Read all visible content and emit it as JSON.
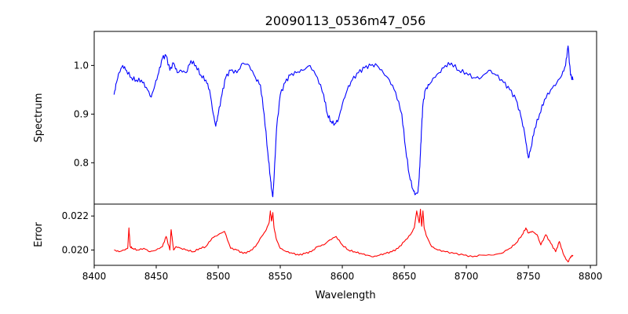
{
  "chart_data": [
    {
      "type": "line",
      "title": "20090113_0536m47_056",
      "xlabel": "",
      "ylabel": "Spectrum",
      "xlim": [
        8400,
        8805
      ],
      "ylim": [
        0.715,
        1.07
      ],
      "xticks": [],
      "yticks": [
        0.8,
        0.9,
        1.0
      ],
      "ytick_labels": [
        "0.8",
        "0.9",
        "1.0"
      ],
      "series": [
        {
          "name": "Spectrum",
          "color": "#0000ff",
          "x": [
            8416,
            8418,
            8420,
            8423,
            8426,
            8430,
            8434,
            8438,
            8442,
            8446,
            8449,
            8452,
            8455,
            8458,
            8461,
            8464,
            8467,
            8470,
            8474,
            8478,
            8482,
            8486,
            8490,
            8493,
            8496,
            8498,
            8500,
            8503,
            8506,
            8510,
            8515,
            8520,
            8525,
            8530,
            8534,
            8537,
            8540,
            8542,
            8543,
            8544,
            8545,
            8547,
            8550,
            8554,
            8558,
            8563,
            8568,
            8574,
            8580,
            8585,
            8588,
            8591,
            8594,
            8597,
            8600,
            8604,
            8608,
            8613,
            8618,
            8623,
            8628,
            8633,
            8638,
            8643,
            8648,
            8651,
            8654,
            8657,
            8659,
            8661,
            8662,
            8663,
            8664,
            8665,
            8667,
            8670,
            8674,
            8678,
            8683,
            8688,
            8694,
            8700,
            8706,
            8712,
            8718,
            8724,
            8730,
            8735,
            8740,
            8744,
            8747,
            8749,
            8750,
            8752,
            8755,
            8759,
            8763,
            8768,
            8773,
            8777,
            8780,
            8782,
            8784,
            8786
          ],
          "values": [
            0.94,
            0.965,
            0.985,
            1.0,
            0.99,
            0.975,
            0.97,
            0.97,
            0.955,
            0.935,
            0.96,
            0.985,
            1.015,
            1.02,
            0.99,
            1.005,
            0.985,
            0.99,
            0.985,
            1.01,
            1.0,
            0.98,
            0.97,
            0.95,
            0.9,
            0.875,
            0.9,
            0.94,
            0.975,
            0.99,
            0.985,
            1.005,
            1.0,
            0.975,
            0.96,
            0.9,
            0.82,
            0.77,
            0.745,
            0.73,
            0.77,
            0.87,
            0.94,
            0.965,
            0.98,
            0.985,
            0.99,
            1.0,
            0.975,
            0.94,
            0.9,
            0.885,
            0.88,
            0.89,
            0.92,
            0.95,
            0.97,
            0.985,
            0.995,
            1.0,
            1.0,
            0.985,
            0.97,
            0.945,
            0.9,
            0.83,
            0.775,
            0.745,
            0.735,
            0.74,
            0.77,
            0.82,
            0.875,
            0.92,
            0.95,
            0.96,
            0.975,
            0.985,
            1.0,
            1.005,
            0.99,
            0.985,
            0.975,
            0.975,
            0.99,
            0.98,
            0.965,
            0.95,
            0.93,
            0.895,
            0.86,
            0.825,
            0.81,
            0.83,
            0.87,
            0.9,
            0.93,
            0.95,
            0.965,
            0.98,
            1.0,
            1.04,
            0.98,
            0.97
          ]
        }
      ]
    },
    {
      "type": "line",
      "title": "",
      "xlabel": "Wavelength",
      "ylabel": "Error",
      "xlim": [
        8400,
        8805
      ],
      "ylim": [
        0.0191,
        0.0227
      ],
      "xticks": [
        8400,
        8450,
        8500,
        8550,
        8600,
        8650,
        8700,
        8750,
        8800
      ],
      "xtick_labels": [
        "8400",
        "8450",
        "8500",
        "8550",
        "8600",
        "8650",
        "8700",
        "8750",
        "8800"
      ],
      "yticks": [
        0.02,
        0.022
      ],
      "ytick_labels": [
        "0.020",
        "0.022"
      ],
      "series": [
        {
          "name": "Error",
          "color": "#ff0000",
          "x": [
            8416,
            8420,
            8424,
            8427,
            8428,
            8429,
            8431,
            8435,
            8440,
            8445,
            8450,
            8455,
            8458,
            8461,
            8462,
            8463,
            8464,
            8466,
            8470,
            8475,
            8480,
            8485,
            8490,
            8495,
            8500,
            8505,
            8510,
            8515,
            8520,
            8525,
            8530,
            8535,
            8538,
            8541,
            8542,
            8543,
            8544,
            8545,
            8547,
            8550,
            8555,
            8560,
            8565,
            8570,
            8575,
            8580,
            8585,
            8590,
            8595,
            8600,
            8605,
            8610,
            8615,
            8620,
            8625,
            8630,
            8635,
            8640,
            8645,
            8650,
            8655,
            8658,
            8660,
            8662,
            8663,
            8664,
            8665,
            8666,
            8668,
            8672,
            8677,
            8683,
            8690,
            8698,
            8705,
            8712,
            8720,
            8728,
            8735,
            8740,
            8745,
            8748,
            8750,
            8753,
            8757,
            8760,
            8764,
            8768,
            8772,
            8775,
            8778,
            8780,
            8782,
            8784,
            8786
          ],
          "values": [
            0.02,
            0.0199,
            0.02,
            0.0201,
            0.0213,
            0.0202,
            0.0201,
            0.02,
            0.0201,
            0.0199,
            0.02,
            0.0202,
            0.0208,
            0.02,
            0.0212,
            0.0206,
            0.02,
            0.0202,
            0.0201,
            0.02,
            0.0199,
            0.0201,
            0.0202,
            0.0207,
            0.0209,
            0.0211,
            0.0201,
            0.02,
            0.0198,
            0.0199,
            0.0202,
            0.0208,
            0.0211,
            0.0216,
            0.0223,
            0.0217,
            0.0222,
            0.0213,
            0.0206,
            0.0201,
            0.0199,
            0.0198,
            0.0197,
            0.0198,
            0.0199,
            0.0202,
            0.0203,
            0.0206,
            0.0208,
            0.0203,
            0.02,
            0.0199,
            0.0198,
            0.0197,
            0.0196,
            0.0197,
            0.0198,
            0.0199,
            0.0201,
            0.0205,
            0.0209,
            0.0213,
            0.0223,
            0.0216,
            0.0224,
            0.0214,
            0.0223,
            0.0213,
            0.0208,
            0.0202,
            0.02,
            0.0199,
            0.0198,
            0.0197,
            0.0196,
            0.0197,
            0.0197,
            0.0198,
            0.0201,
            0.0204,
            0.0209,
            0.0213,
            0.021,
            0.0211,
            0.0209,
            0.0203,
            0.0209,
            0.0204,
            0.0199,
            0.0205,
            0.0198,
            0.0195,
            0.0193,
            0.0196,
            0.0197
          ]
        }
      ]
    }
  ]
}
